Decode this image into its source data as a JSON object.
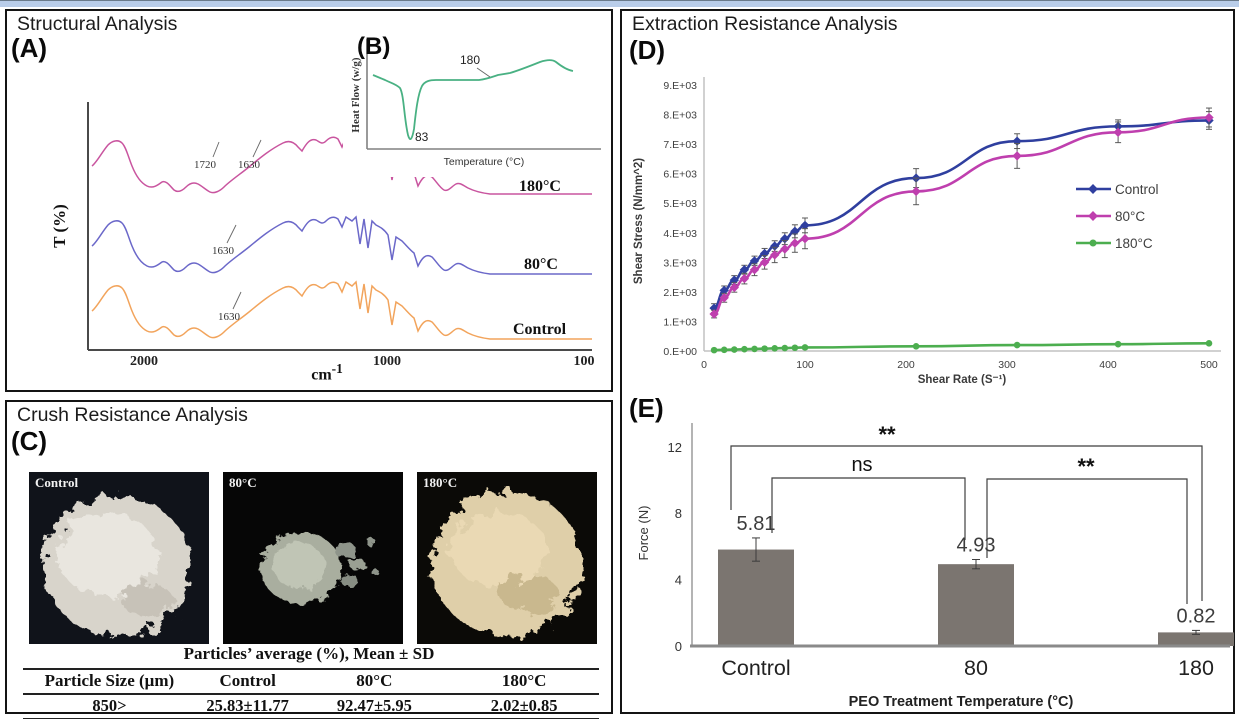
{
  "page": {
    "top_strip_color": "#b9cde9"
  },
  "structural": {
    "title": "Structural Analysis",
    "panel_label": "(A)",
    "ftir": {
      "ylabel": "T (%)",
      "xlabel_base": "cm",
      "xlabel_sup": "-1",
      "xticks": [
        "2000",
        "1000",
        "100"
      ],
      "curves": [
        {
          "label": "180°C",
          "color": "#c9559f",
          "peaks": [
            "1720",
            "1630"
          ]
        },
        {
          "label": "80°C",
          "color": "#6b68c9",
          "peaks": [
            "1630"
          ]
        },
        {
          "label": "Control",
          "color": "#f2a45c",
          "peaks": [
            "1630"
          ]
        }
      ]
    },
    "dsc": {
      "panel_label": "(B)",
      "ylabel": "Heat Flow (w/g)",
      "xlabel": "Temperature (°C)",
      "curve_color": "#49b183",
      "endotherm_min": "83",
      "transition": "180"
    }
  },
  "crush": {
    "title": "Crush Resistance Analysis",
    "panel_label": "(C)",
    "photos": [
      {
        "label": "Control"
      },
      {
        "label": "80°C"
      },
      {
        "label": "180°C"
      }
    ],
    "table": {
      "caption": "Particles’ average (%), Mean ± SD",
      "headers": [
        "Particle Size (μm)",
        "Control",
        "80°C",
        "180°C"
      ],
      "rows": [
        [
          "850>",
          "25.83±11.77",
          "92.47±5.95",
          "2.02±0.85"
        ]
      ]
    }
  },
  "extraction": {
    "title": "Extraction Resistance Analysis",
    "panel_label_d": "(D)",
    "panel_label_e": "(E)"
  },
  "chart_data": [
    {
      "id": "shear",
      "type": "line",
      "xlabel": "Shear Rate (S⁻¹)",
      "ylabel": "Shear Stress (N/mm^2)",
      "xlim": [
        0,
        520
      ],
      "ylim": [
        0,
        9000
      ],
      "grid": false,
      "legend_position": "right",
      "xticks": [
        0,
        100,
        200,
        300,
        400,
        500
      ],
      "ytick_labels": [
        "0.E+00",
        "1.E+03",
        "2.E+03",
        "3.E+03",
        "4.E+03",
        "5.E+03",
        "6.E+03",
        "7.E+03",
        "8.E+03",
        "9.E+03"
      ],
      "x": [
        10,
        20,
        30,
        40,
        50,
        60,
        70,
        80,
        90,
        100,
        210,
        310,
        410,
        500
      ],
      "series": [
        {
          "name": "Control",
          "color": "#2f3f9f",
          "marker": "diamond",
          "values": [
            1450,
            2050,
            2400,
            2750,
            3050,
            3300,
            3550,
            3800,
            4050,
            4250,
            5850,
            7100,
            7600,
            7800
          ],
          "errors": [
            150,
            150,
            150,
            150,
            160,
            170,
            180,
            200,
            220,
            250,
            320,
            250,
            220,
            300
          ]
        },
        {
          "name": "80°C",
          "color": "#bf3fae",
          "marker": "diamond",
          "values": [
            1250,
            1800,
            2150,
            2450,
            2750,
            3000,
            3250,
            3450,
            3650,
            3800,
            5400,
            6600,
            7400,
            7900
          ],
          "errors": [
            130,
            150,
            160,
            180,
            200,
            230,
            260,
            290,
            310,
            340,
            450,
            420,
            350,
            320
          ]
        },
        {
          "name": "180°C",
          "color": "#4cae4f",
          "marker": "circle",
          "values": [
            30,
            40,
            50,
            60,
            70,
            80,
            90,
            100,
            110,
            120,
            160,
            200,
            230,
            260
          ],
          "errors": [
            0,
            0,
            0,
            0,
            0,
            0,
            0,
            0,
            0,
            0,
            0,
            0,
            0,
            0
          ]
        }
      ]
    },
    {
      "id": "force",
      "type": "bar",
      "categories": [
        "Control",
        "80",
        "180"
      ],
      "values": [
        5.81,
        4.93,
        0.82
      ],
      "errors": [
        0.7,
        0.28,
        0.12
      ],
      "value_labels": [
        "5.81",
        "4.93",
        "0.82"
      ],
      "bar_color": "#7b7570",
      "xlabel": "PEO Treatment Temperature (°C)",
      "ylabel": "Force (N)",
      "yticks": [
        0,
        4,
        8,
        12
      ],
      "ylim": [
        0,
        13.5
      ],
      "significance": [
        {
          "from": 0,
          "to": 1,
          "label": "ns"
        },
        {
          "from": 1,
          "to": 2,
          "label": "**"
        },
        {
          "from": 0,
          "to": 2,
          "label": "**"
        }
      ]
    }
  ]
}
